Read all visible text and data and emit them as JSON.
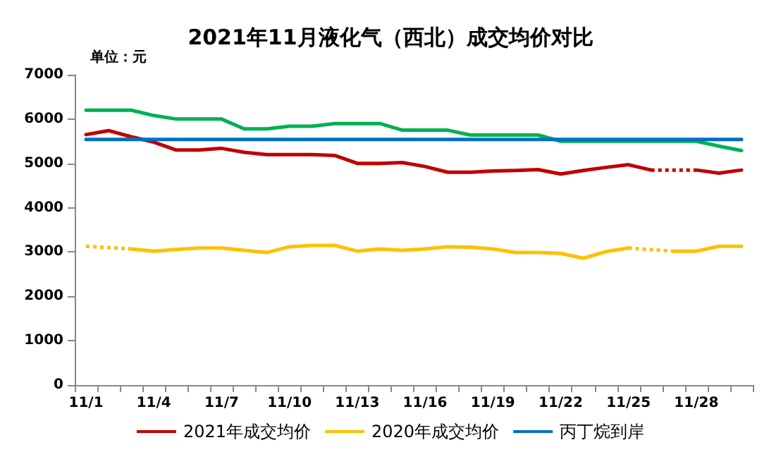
{
  "chart_data": {
    "type": "line",
    "title": "2021年11月液化气（西北）成交均价对比",
    "annotations": [
      "单位：元"
    ],
    "categories": [
      "11/1",
      null,
      null,
      "11/4",
      null,
      null,
      "11/7",
      null,
      null,
      "11/10",
      null,
      null,
      "11/13",
      null,
      null,
      "11/16",
      null,
      null,
      "11/19",
      null,
      null,
      "11/22",
      null,
      null,
      "11/25",
      null,
      null,
      "11/28",
      null,
      null
    ],
    "ylim": [
      0,
      7000
    ],
    "yticks": [
      0,
      1000,
      2000,
      3000,
      4000,
      5000,
      6000,
      7000
    ],
    "grid": false,
    "legend": "bottom",
    "marker": "none",
    "line_style": "solid",
    "series": [
      {
        "name": "2021年成交均价",
        "color": "#c00000",
        "values": [
          5650,
          5740,
          5600,
          5480,
          5300,
          5300,
          5340,
          5250,
          5200,
          5200,
          5200,
          5180,
          5000,
          5000,
          5020,
          4930,
          4800,
          4800,
          4830,
          4840,
          4860,
          4760,
          4840,
          4910,
          4970,
          4850,
          null,
          4850,
          4780,
          4850
        ]
      },
      {
        "name": "2020年成交均价",
        "color": "#ffc000",
        "values": [
          3130,
          null,
          3070,
          3020,
          3060,
          3090,
          3090,
          3040,
          2990,
          3120,
          3150,
          3150,
          3020,
          3070,
          3040,
          3070,
          3120,
          3110,
          3070,
          2990,
          2990,
          2970,
          2860,
          3010,
          3090,
          null,
          3020,
          3020,
          3130,
          3130
        ]
      },
      {
        "color": "#00b050",
        "values": [
          6200,
          6200,
          6200,
          6080,
          6000,
          6000,
          6000,
          5780,
          5780,
          5840,
          5840,
          5900,
          5900,
          5900,
          5750,
          5750,
          5750,
          5640,
          5640,
          5640,
          5640,
          5500,
          5500,
          5500,
          5500,
          5500,
          5500,
          5500,
          5390,
          5290
        ]
      },
      {
        "name": "丙丁烷到岸",
        "color": "#0070c0",
        "values": [
          5540,
          5540,
          5540,
          5540,
          5540,
          5540,
          5540,
          5540,
          5540,
          5540,
          5540,
          5540,
          5540,
          5540,
          5540,
          5540,
          5540,
          5540,
          5540,
          5540,
          5540,
          5540,
          5540,
          5540,
          5540,
          5540,
          5540,
          5540,
          5540,
          5540
        ]
      }
    ]
  }
}
